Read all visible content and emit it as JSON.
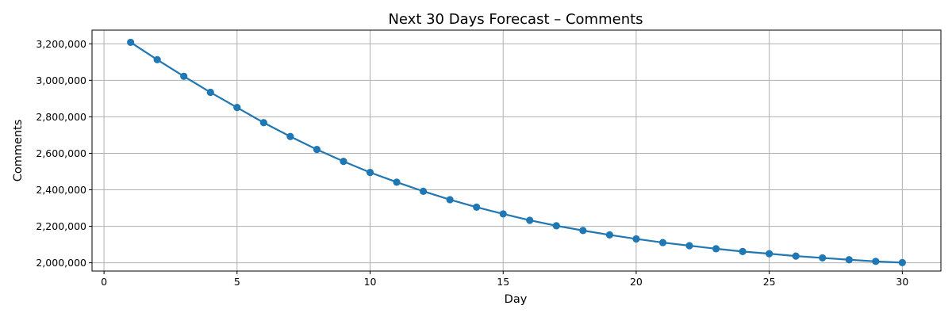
{
  "chart_data": {
    "type": "line",
    "title": "Next 30 Days Forecast – Comments",
    "xlabel": "Day",
    "ylabel": "Comments",
    "xlim": [
      -0.45,
      31.45
    ],
    "ylim": [
      1955000,
      3275000
    ],
    "xticks": [
      0,
      5,
      10,
      15,
      20,
      25,
      30
    ],
    "yticks": [
      2000000,
      2200000,
      2400000,
      2600000,
      2800000,
      3000000,
      3200000
    ],
    "grid": true,
    "colors": {
      "line": "#1f77b4"
    },
    "series": [
      {
        "x": [
          1,
          2,
          3,
          4,
          5,
          6,
          7,
          8,
          9,
          10,
          11,
          12,
          13,
          14,
          15,
          16,
          17,
          18,
          19,
          20,
          21,
          22,
          23,
          24,
          25,
          26,
          27,
          28,
          29,
          30
        ],
        "values": [
          3208000,
          3113000,
          3022000,
          2934000,
          2851000,
          2768000,
          2692000,
          2621000,
          2556000,
          2495000,
          2442000,
          2392000,
          2346000,
          2305000,
          2268000,
          2233000,
          2203000,
          2177000,
          2153000,
          2131000,
          2111000,
          2094000,
          2077000,
          2062000,
          2050000,
          2037000,
          2027000,
          2017000,
          2008000,
          2001000
        ]
      }
    ]
  }
}
